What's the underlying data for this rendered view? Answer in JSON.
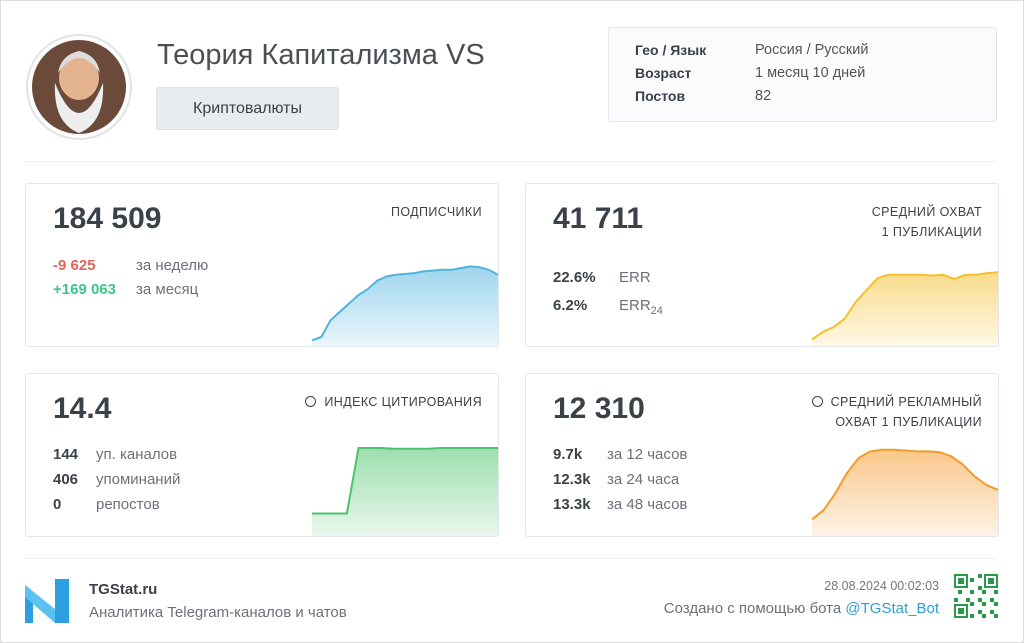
{
  "header": {
    "title": "Теория Капитализма VS",
    "category": "Криптовалюты",
    "info": [
      {
        "label": "Гео / Язык",
        "value": "Россия / Русский"
      },
      {
        "label": "Возраст",
        "value": "1 месяц 10 дней"
      },
      {
        "label": "Постов",
        "value": "82"
      }
    ]
  },
  "cards": [
    {
      "value": "184 509",
      "heading": [
        "ПОДПИСЧИКИ"
      ],
      "stats": [
        {
          "value": "-9 625",
          "label": "за неделю",
          "color": "#e0645c"
        },
        {
          "value": "+169 063",
          "label": "за месяц",
          "color": "#3cc48a"
        }
      ],
      "sparkline": {
        "color": "#4fb3e0",
        "ylim": [
          0,
          100
        ],
        "values": [
          2,
          6,
          26,
          36,
          46,
          56,
          63,
          73,
          78,
          80,
          81,
          82,
          84,
          85,
          86,
          86,
          88,
          90,
          89,
          86,
          80
        ]
      }
    },
    {
      "value": "41 711",
      "heading": [
        "СРЕДНИЙ ОХВАТ",
        "1 ПУБЛИКАЦИИ"
      ],
      "stats": [
        {
          "value": "22.6%",
          "label": "ERR"
        },
        {
          "value": "6.2%",
          "label": "ERR",
          "sub": "24"
        }
      ],
      "sparkline": {
        "color": "#f5c02a",
        "ylim": [
          0,
          100
        ],
        "values": [
          3,
          12,
          18,
          28,
          48,
          62,
          76,
          80,
          80,
          80,
          80,
          79,
          80,
          75,
          80,
          80,
          82,
          83
        ]
      }
    },
    {
      "value": "14.4",
      "heading": [
        "ИНДЕКС ЦИТИРОВАНИЯ"
      ],
      "stats": [
        {
          "value": "144",
          "label": "уп. каналов"
        },
        {
          "value": "406",
          "label": "упоминаний"
        },
        {
          "value": "0",
          "label": "репостов"
        }
      ],
      "sparkline": {
        "color": "#4cc36a",
        "ylim": [
          0,
          100
        ],
        "values": [
          22,
          22,
          22,
          22,
          100,
          100,
          100,
          99,
          99,
          99,
          99,
          100,
          100,
          100,
          100,
          100,
          100
        ]
      }
    },
    {
      "value": "12 310",
      "heading": [
        "СРЕДНИЙ РЕКЛАМНЫЙ",
        "ОХВАТ 1 ПУБЛИКАЦИИ"
      ],
      "stats": [
        {
          "value": "9.7k",
          "label": "за 12 часов"
        },
        {
          "value": "12.3k",
          "label": "за 24 часа"
        },
        {
          "value": "13.3k",
          "label": "за 48 часов"
        }
      ],
      "sparkline": {
        "color": "#f59a2a",
        "ylim": [
          0,
          100
        ],
        "values": [
          15,
          26,
          46,
          70,
          88,
          96,
          98,
          98,
          97,
          96,
          96,
          95,
          90,
          80,
          66,
          56,
          50
        ]
      }
    }
  ],
  "footer": {
    "brand": "TGStat.ru",
    "tagline": "Аналитика Telegram-каналов и чатов",
    "date": "28.08.2024 00:02:03",
    "created": "Создано с помощью бота",
    "bot": "@TGStat_Bot"
  }
}
